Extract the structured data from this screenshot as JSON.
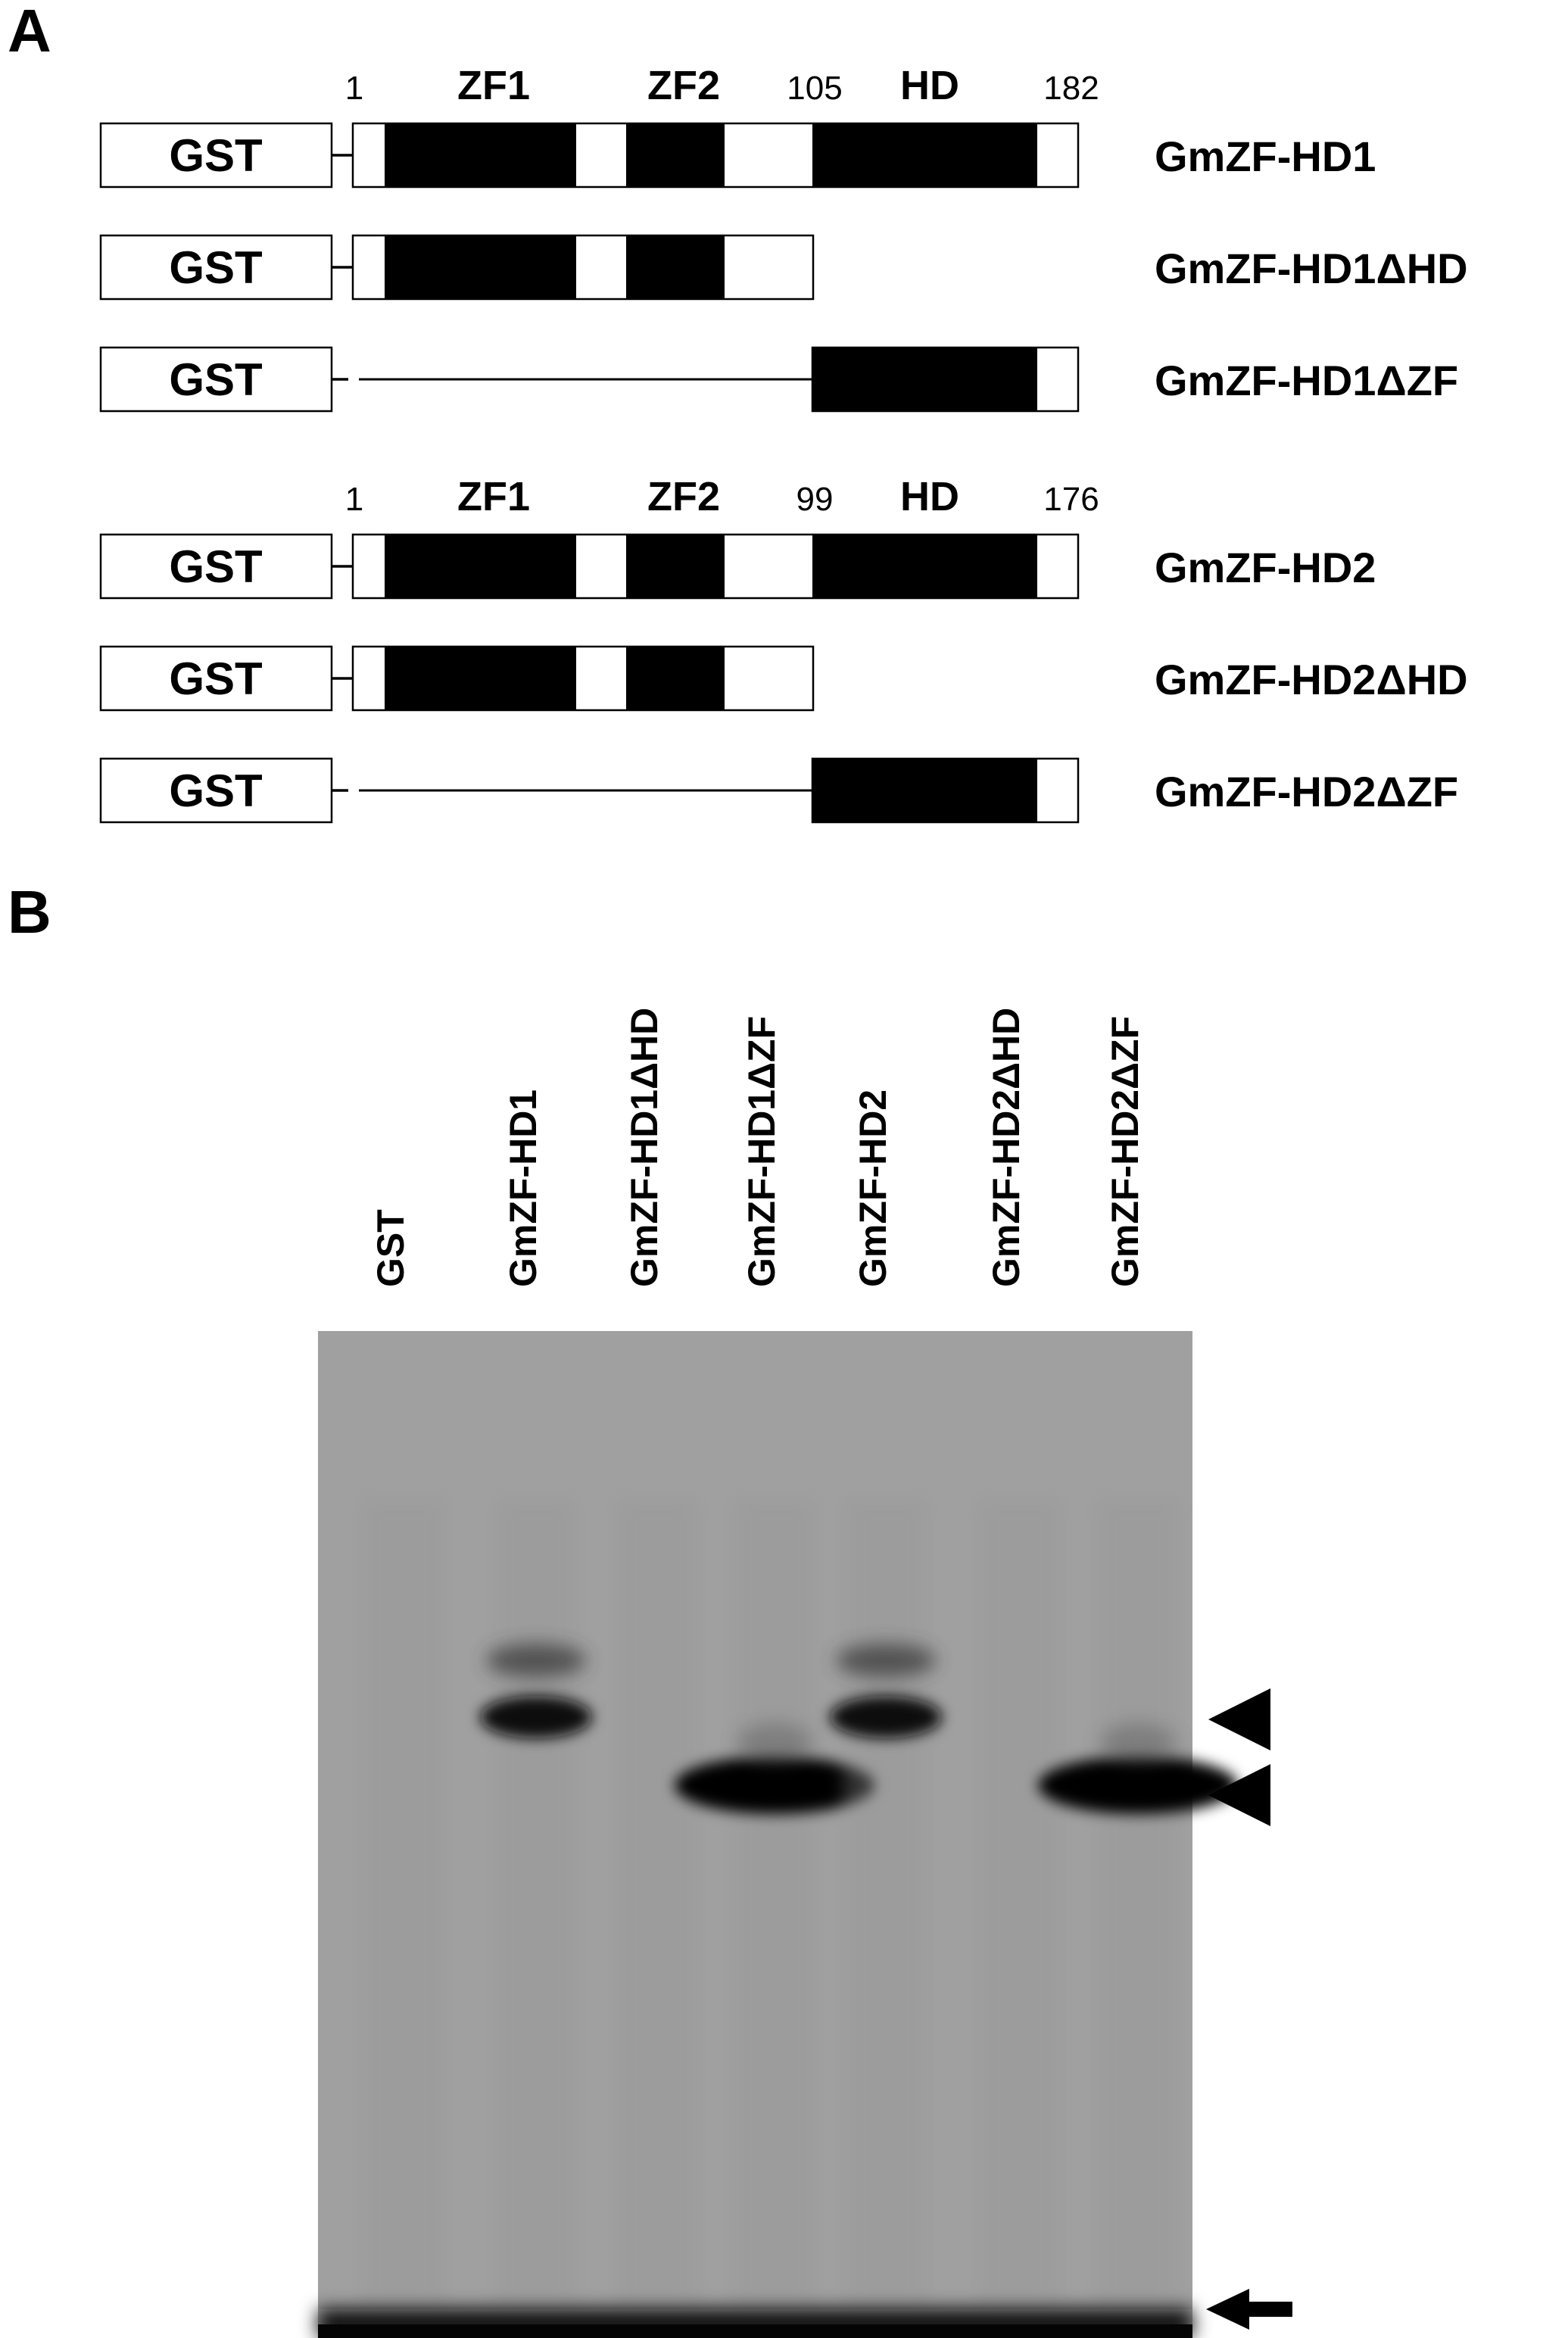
{
  "figure": {
    "panel_a_letter": "A",
    "panel_b_letter": "B",
    "panel_a": {
      "groups": [
        {
          "positions": {
            "start": "1",
            "hd_start": "105",
            "end": "182"
          },
          "domains": {
            "zf1": "ZF1",
            "zf2": "ZF2",
            "hd": "HD"
          },
          "constructs": [
            {
              "tag": "GST",
              "name": "GmZF-HD1",
              "type": "full"
            },
            {
              "tag": "GST",
              "name": "GmZF-HD1ΔHD",
              "type": "delta_hd"
            },
            {
              "tag": "GST",
              "name": "GmZF-HD1ΔZF",
              "type": "delta_zf"
            }
          ]
        },
        {
          "positions": {
            "start": "1",
            "hd_start": "99",
            "end": "176"
          },
          "domains": {
            "zf1": "ZF1",
            "zf2": "ZF2",
            "hd": "HD"
          },
          "constructs": [
            {
              "tag": "GST",
              "name": "GmZF-HD2",
              "type": "full"
            },
            {
              "tag": "GST",
              "name": "GmZF-HD2ΔHD",
              "type": "delta_hd"
            },
            {
              "tag": "GST",
              "name": "GmZF-HD2ΔZF",
              "type": "delta_zf"
            }
          ]
        }
      ]
    },
    "panel_b": {
      "lanes": [
        {
          "label": "GST",
          "bands": []
        },
        {
          "label": "GmZF-HD1",
          "bands": [
            "upper",
            "faint_upper"
          ]
        },
        {
          "label": "GmZF-HD1ΔHD",
          "bands": []
        },
        {
          "label": "GmZF-HD1ΔZF",
          "bands": [
            "lower"
          ]
        },
        {
          "label": "GmZF-HD2",
          "bands": [
            "upper",
            "faint_upper"
          ]
        },
        {
          "label": "GmZF-HD2ΔHD",
          "bands": []
        },
        {
          "label": "GmZF-HD2ΔZF",
          "bands": [
            "lower"
          ]
        }
      ],
      "markers": [
        {
          "name": "upper-complex",
          "icon": "arrowhead-left-icon"
        },
        {
          "name": "lower-complex",
          "icon": "arrowhead-left-icon"
        },
        {
          "name": "free-probe",
          "icon": "arrow-left-icon"
        }
      ],
      "gel_color": "#a0a0a0"
    }
  }
}
